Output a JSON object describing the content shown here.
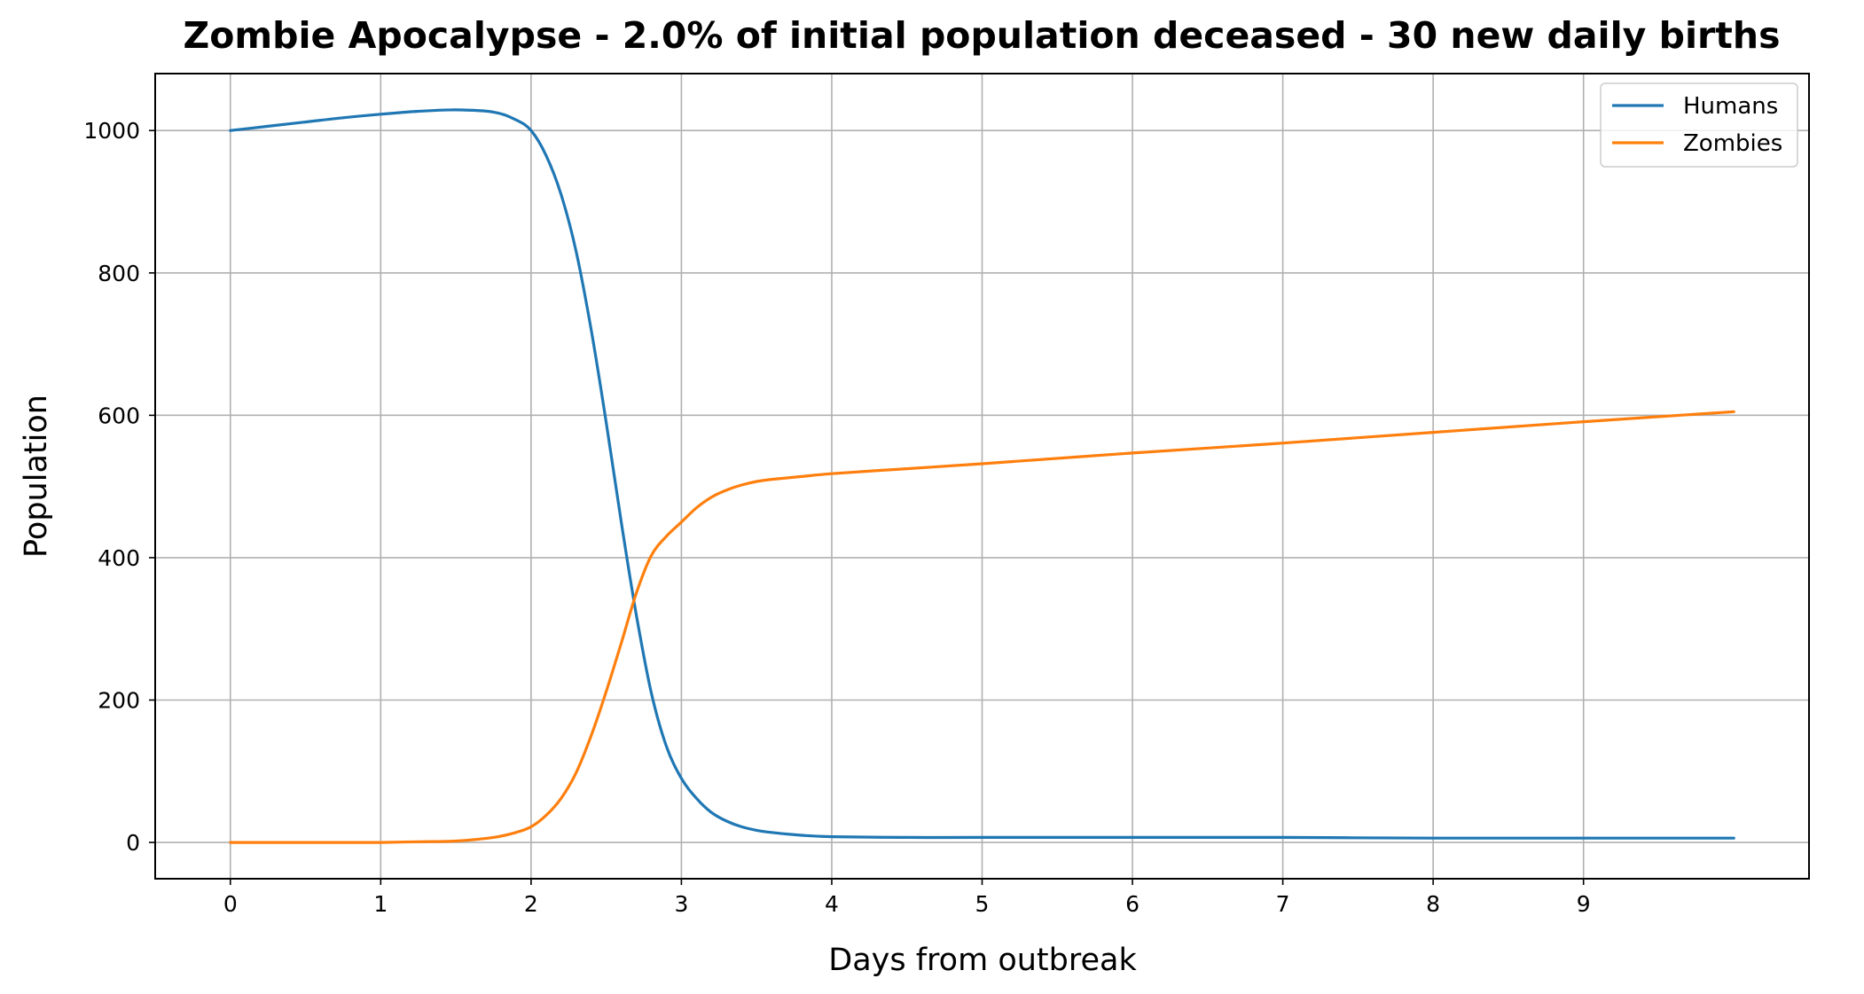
{
  "chart_data": {
    "type": "line",
    "title": "Zombie Apocalypse - 2.0% of initial population deceased - 30 new daily births",
    "xlabel": "Days from outbreak",
    "ylabel": "Population",
    "xlim": [
      -0.5,
      10.5
    ],
    "ylim": [
      -51,
      1080
    ],
    "xticks": [
      0,
      1,
      2,
      3,
      4,
      5,
      6,
      7,
      8,
      9
    ],
    "yticks": [
      0,
      200,
      400,
      600,
      800,
      1000
    ],
    "grid": true,
    "legend_position": "top-right",
    "x": [
      0,
      0.25,
      0.5,
      0.75,
      1,
      1.25,
      1.5,
      1.75,
      1.9,
      2,
      2.1,
      2.2,
      2.3,
      2.4,
      2.5,
      2.6,
      2.7,
      2.8,
      2.9,
      3,
      3.1,
      3.2,
      3.3,
      3.4,
      3.5,
      3.6,
      3.8,
      4,
      4.5,
      5,
      6,
      7,
      8,
      9,
      10
    ],
    "series": [
      {
        "name": "Humans",
        "color": "#1f77b4",
        "values": [
          1000,
          1006,
          1012,
          1018,
          1023,
          1027,
          1029,
          1026,
          1015,
          1000,
          965,
          910,
          830,
          720,
          590,
          450,
          320,
          210,
          135,
          90,
          62,
          42,
          30,
          22,
          17,
          14,
          10,
          8,
          7,
          7,
          7,
          7,
          6,
          6,
          6
        ]
      },
      {
        "name": "Zombies",
        "color": "#ff7f0e",
        "values": [
          0,
          0,
          0,
          0,
          0,
          1,
          2,
          7,
          14,
          22,
          38,
          62,
          98,
          150,
          212,
          280,
          350,
          403,
          430,
          450,
          470,
          485,
          495,
          502,
          507,
          510,
          514,
          518,
          525,
          532,
          547,
          561,
          576,
          591,
          605
        ]
      }
    ]
  }
}
